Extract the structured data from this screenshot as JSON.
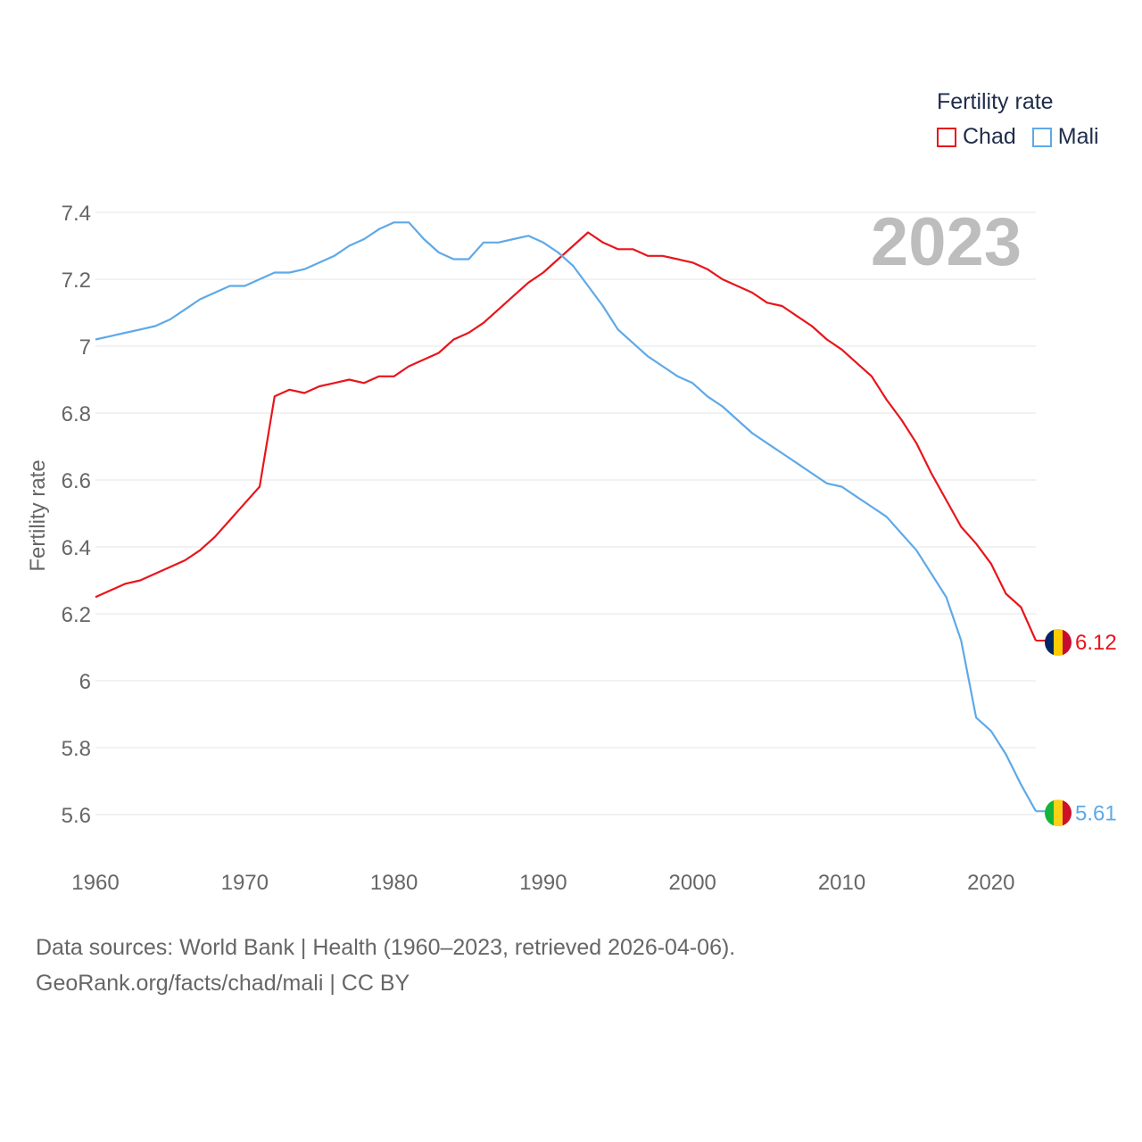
{
  "legend": {
    "title": "Fertility rate",
    "items": [
      {
        "label": "Chad",
        "color": "#e8151b"
      },
      {
        "label": "Mali",
        "color": "#5ea9e8"
      }
    ]
  },
  "year_badge": "2023",
  "source": {
    "line1": "Data sources: World Bank | Health (1960–2023, retrieved 2026-04-06).",
    "line2": "GeoRank.org/facts/chad/mali | CC BY"
  },
  "chart_data": {
    "type": "line",
    "ylabel": "Fertility rate",
    "xlabel": "",
    "xlim": [
      1960,
      2023
    ],
    "ylim": [
      5.6,
      7.4
    ],
    "x_ticks": [
      1960,
      1970,
      1980,
      1990,
      2000,
      2010,
      2020
    ],
    "y_ticks": [
      5.6,
      5.8,
      6,
      6.2,
      6.4,
      6.6,
      6.8,
      7,
      7.2,
      7.4
    ],
    "y_tick_labels": [
      "5.6",
      "5.8",
      "6",
      "6.2",
      "6.4",
      "6.6",
      "6.8",
      "7",
      "7.2",
      "7.4"
    ],
    "x": [
      1960,
      1961,
      1962,
      1963,
      1964,
      1965,
      1966,
      1967,
      1968,
      1969,
      1970,
      1971,
      1972,
      1973,
      1974,
      1975,
      1976,
      1977,
      1978,
      1979,
      1980,
      1981,
      1982,
      1983,
      1984,
      1985,
      1986,
      1987,
      1988,
      1989,
      1990,
      1991,
      1992,
      1993,
      1994,
      1995,
      1996,
      1997,
      1998,
      1999,
      2000,
      2001,
      2002,
      2003,
      2004,
      2005,
      2006,
      2007,
      2008,
      2009,
      2010,
      2011,
      2012,
      2013,
      2014,
      2015,
      2016,
      2017,
      2018,
      2019,
      2020,
      2021,
      2022,
      2023
    ],
    "series": [
      {
        "name": "Chad",
        "color": "#e8151b",
        "end_label": "6.12",
        "values": [
          6.25,
          6.27,
          6.29,
          6.3,
          6.32,
          6.34,
          6.36,
          6.39,
          6.43,
          6.48,
          6.53,
          6.58,
          6.85,
          6.87,
          6.86,
          6.88,
          6.89,
          6.9,
          6.89,
          6.91,
          6.91,
          6.94,
          6.96,
          6.98,
          7.02,
          7.04,
          7.07,
          7.11,
          7.15,
          7.19,
          7.22,
          7.26,
          7.3,
          7.34,
          7.31,
          7.29,
          7.29,
          7.27,
          7.27,
          7.26,
          7.25,
          7.23,
          7.2,
          7.18,
          7.16,
          7.13,
          7.12,
          7.09,
          7.06,
          7.02,
          6.99,
          6.95,
          6.91,
          6.84,
          6.78,
          6.71,
          6.62,
          6.54,
          6.46,
          6.41,
          6.35,
          6.26,
          6.22,
          6.12
        ]
      },
      {
        "name": "Mali",
        "color": "#5ea9e8",
        "end_label": "5.61",
        "values": [
          7.02,
          7.03,
          7.04,
          7.05,
          7.06,
          7.08,
          7.11,
          7.14,
          7.16,
          7.18,
          7.18,
          7.2,
          7.22,
          7.22,
          7.23,
          7.25,
          7.27,
          7.3,
          7.32,
          7.35,
          7.37,
          7.37,
          7.32,
          7.28,
          7.26,
          7.26,
          7.31,
          7.31,
          7.32,
          7.33,
          7.31,
          7.28,
          7.24,
          7.18,
          7.12,
          7.05,
          7.01,
          6.97,
          6.94,
          6.91,
          6.89,
          6.85,
          6.82,
          6.78,
          6.74,
          6.71,
          6.68,
          6.65,
          6.62,
          6.59,
          6.58,
          6.55,
          6.52,
          6.49,
          6.44,
          6.39,
          6.32,
          6.25,
          6.12,
          5.89,
          5.85,
          5.78,
          5.69,
          5.61
        ]
      }
    ]
  }
}
